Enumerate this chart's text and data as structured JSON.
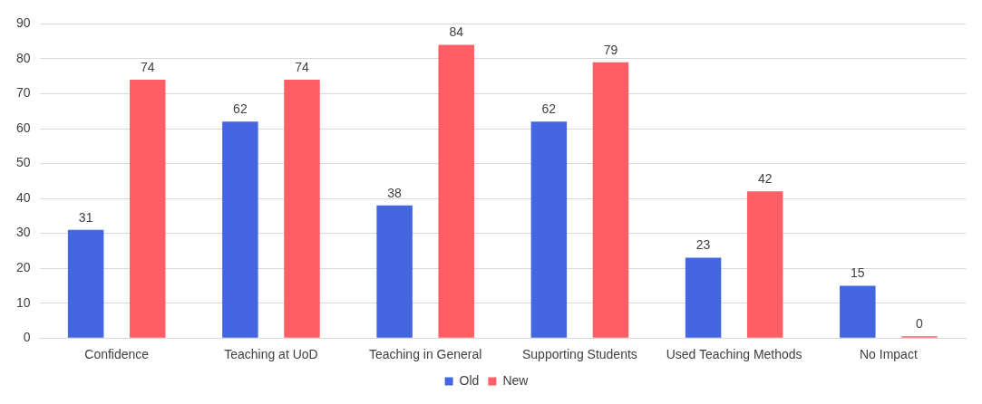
{
  "chart_data": {
    "type": "bar",
    "categories": [
      "Confidence",
      "Teaching at UoD",
      "Teaching in General",
      "Supporting Students",
      "Used Teaching Methods",
      "No Impact"
    ],
    "series": [
      {
        "name": "Old",
        "color": "#4466e0",
        "values": [
          31,
          62,
          38,
          62,
          23,
          15
        ]
      },
      {
        "name": "New",
        "color": "#ff5f64",
        "values": [
          74,
          74,
          84,
          79,
          42,
          0
        ]
      }
    ],
    "ylim": [
      0,
      90
    ],
    "yticks": [
      0,
      10,
      20,
      30,
      40,
      50,
      60,
      70,
      80,
      90
    ],
    "grid": "y",
    "legend": "bottom",
    "data_labels": true
  }
}
